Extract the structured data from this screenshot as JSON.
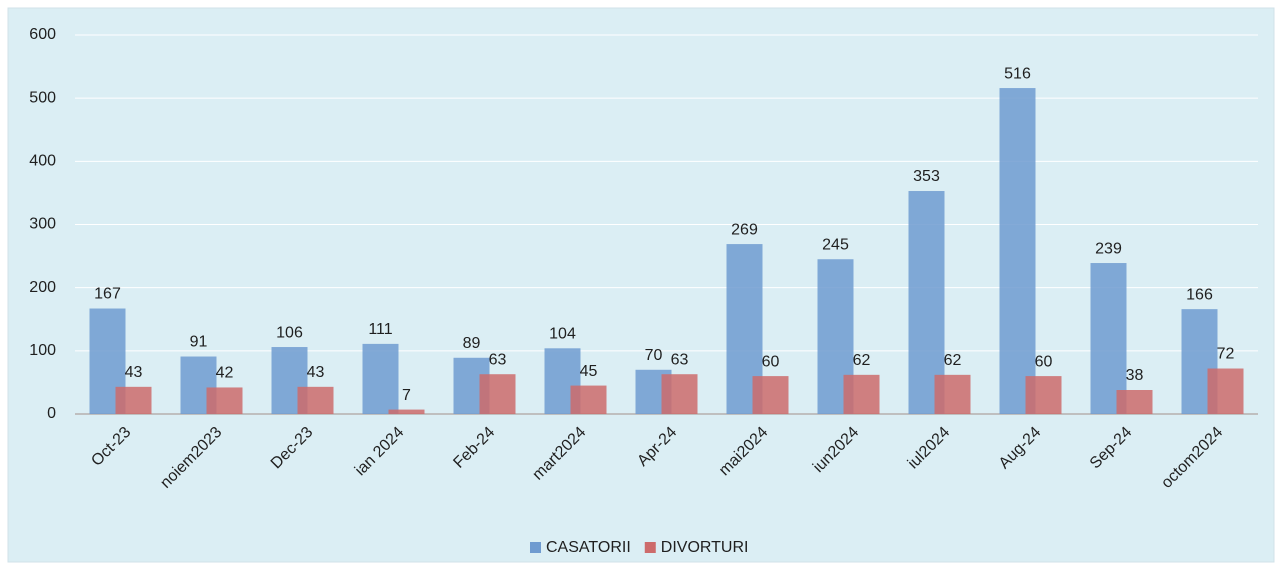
{
  "chart_data": {
    "type": "bar",
    "categories": [
      "Oct-23",
      "noiem2023",
      "Dec-23",
      "ian 2024",
      "Feb-24",
      "mart2024",
      "Apr-24",
      "mai2024",
      "iun2024",
      "iul2024",
      "Aug-24",
      "Sep-24",
      "octom2024"
    ],
    "series": [
      {
        "name": "CASATORII",
        "color": "#6f9bd0",
        "values": [
          167,
          91,
          106,
          111,
          89,
          104,
          70,
          269,
          245,
          353,
          516,
          239,
          166
        ]
      },
      {
        "name": "DIVORTURI",
        "color": "#cd6b6b",
        "values": [
          43,
          42,
          43,
          7,
          63,
          45,
          63,
          60,
          62,
          62,
          60,
          38,
          72
        ]
      }
    ],
    "ylim": [
      0,
      600
    ],
    "yticks": [
      0,
      100,
      200,
      300,
      400,
      500,
      600
    ],
    "grid": true,
    "legend": "bottom"
  }
}
